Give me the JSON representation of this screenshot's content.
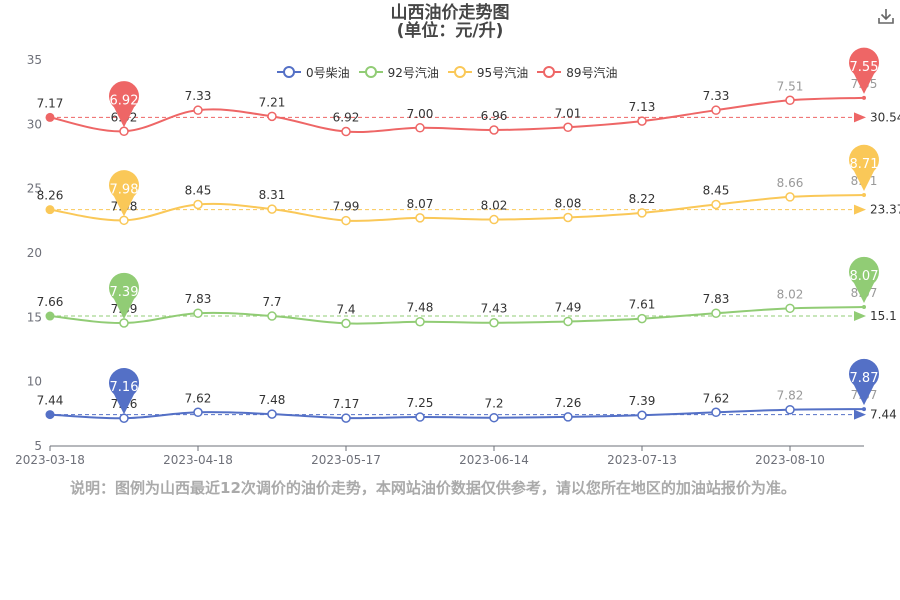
{
  "title_line1": "山西油价走势图",
  "title_line2": "(单位：元/升)",
  "download_icon": "download-icon",
  "note": "说明：图例为山西最近12次调价的油价走势，本网站油价数据仅供参考，请以您所在地区的加油站报价为准。",
  "chart_data": {
    "type": "line",
    "x": [
      "2023-03-18",
      "2023-03-31",
      "2023-04-18",
      "2023-05-04",
      "2023-05-17",
      "2023-05-31",
      "2023-06-14",
      "2023-06-28",
      "2023-07-13",
      "2023-07-27",
      "2023-08-10",
      "2023-08-23"
    ],
    "xtick_labels": [
      "2023-03-18",
      "2023-04-18",
      "2023-05-17",
      "2023-06-14",
      "2023-07-13",
      "2023-08-10"
    ],
    "ylim": [
      5,
      35
    ],
    "yticks": [
      5,
      10,
      15,
      20,
      25,
      30,
      35
    ],
    "grid": false,
    "legend_position": "top",
    "series": [
      {
        "name": "0号柴油",
        "color": "#5470c6",
        "values": [
          7.44,
          7.16,
          7.62,
          7.48,
          7.17,
          7.25,
          7.2,
          7.26,
          7.39,
          7.62,
          7.82,
          7.87
        ],
        "labels": [
          "7.44",
          "7.16",
          "7.62",
          "7.48",
          "7.17",
          "7.25",
          "7.2",
          "7.26",
          "7.39",
          "7.62",
          "7.82",
          "7.87"
        ],
        "pin_max": "7.87",
        "pin_min": "7.16",
        "avg_label": "7.44"
      },
      {
        "name": "92号汽油",
        "color": "#91cc75",
        "values": [
          15.1,
          14.56,
          15.32,
          15.1,
          14.53,
          14.66,
          14.58,
          14.68,
          14.9,
          15.32,
          15.7,
          15.8
        ],
        "labels": [
          "7.66",
          "7.39",
          "7.83",
          "7.7",
          "7.4",
          "7.48",
          "7.43",
          "7.49",
          "7.61",
          "7.83",
          "8.02",
          "8.07"
        ],
        "pin_max": "8.07",
        "pin_min": "7.39",
        "avg_label": "15.1"
      },
      {
        "name": "95号汽油",
        "color": "#fac858",
        "values": [
          23.37,
          22.54,
          23.77,
          23.41,
          22.52,
          22.73,
          22.6,
          22.76,
          23.12,
          23.77,
          24.36,
          24.51
        ],
        "labels": [
          "8.26",
          "7.98",
          "8.45",
          "8.31",
          "7.99",
          "8.07",
          "8.02",
          "8.08",
          "8.22",
          "8.45",
          "8.66",
          "8.71"
        ],
        "pin_max": "8.71",
        "pin_min": "7.98",
        "avg_label": "23.37"
      },
      {
        "name": "89号汽油",
        "color": "#ee6666",
        "values": [
          30.54,
          29.46,
          31.1,
          30.62,
          29.44,
          29.73,
          29.56,
          29.77,
          30.25,
          31.1,
          31.87,
          32.06
        ],
        "labels": [
          "7.17",
          "6.92",
          "7.33",
          "7.21",
          "6.92",
          "7.00",
          "6.96",
          "7.01",
          "7.13",
          "7.33",
          "7.51",
          "7.55"
        ],
        "pin_max": "7.55",
        "pin_min": "6.92",
        "avg_label": "30.54"
      }
    ]
  }
}
